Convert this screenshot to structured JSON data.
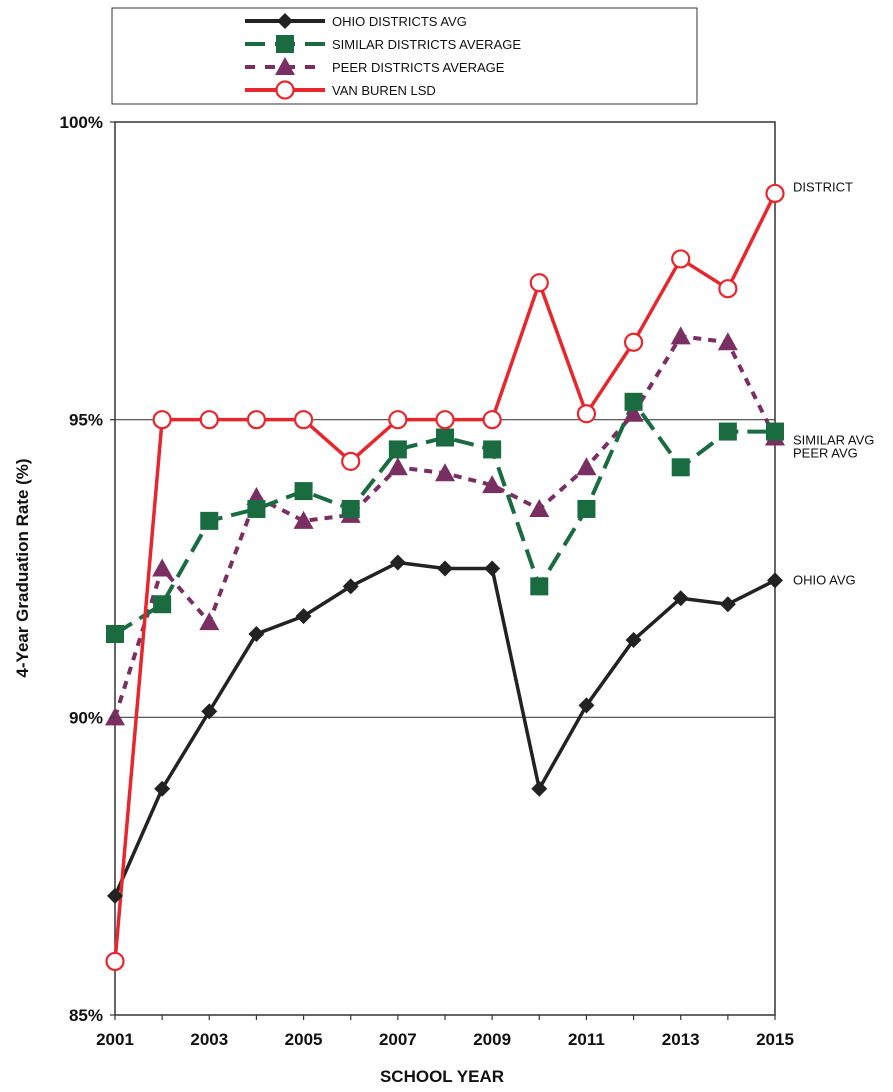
{
  "chart_data": {
    "type": "line",
    "xlabel": "SCHOOL YEAR",
    "ylabel": "4-Year Graduation Rate (%)",
    "x": [
      2001,
      2002,
      2003,
      2004,
      2005,
      2006,
      2007,
      2008,
      2009,
      2010,
      2011,
      2012,
      2013,
      2014,
      2015
    ],
    "xticks": [
      "2001",
      "2003",
      "2005",
      "2007",
      "2009",
      "2011",
      "2013",
      "2015"
    ],
    "ylim": [
      85,
      100
    ],
    "yticks": [
      "85%",
      "90%",
      "95%",
      "100%"
    ],
    "gridlines_y": [
      90,
      95
    ],
    "legend_position": "top",
    "series": [
      {
        "name": "OHIO DISTRICTS AVG",
        "end_label": "OHIO AVG",
        "color": "#222222",
        "marker": "diamond",
        "dashed": false,
        "values": [
          87.0,
          88.8,
          90.1,
          91.4,
          91.7,
          92.2,
          92.6,
          92.5,
          92.5,
          88.8,
          90.2,
          91.3,
          92.0,
          91.9,
          92.3
        ]
      },
      {
        "name": "SIMILAR DISTRICTS AVERAGE",
        "end_label": "SIMILAR AVG",
        "color": "#1a6b40",
        "marker": "square",
        "dashed": true,
        "values": [
          91.4,
          91.9,
          93.3,
          93.5,
          93.8,
          93.5,
          94.5,
          94.7,
          94.5,
          92.2,
          93.5,
          95.3,
          94.2,
          94.8,
          94.8
        ]
      },
      {
        "name": "PEER DISTRICTS AVERAGE",
        "end_label": "PEER AVG",
        "color": "#7a2f63",
        "marker": "triangle",
        "dashed": true,
        "values": [
          90.0,
          92.5,
          91.6,
          93.7,
          93.3,
          93.4,
          94.2,
          94.1,
          93.9,
          93.5,
          94.2,
          95.1,
          96.4,
          96.3,
          94.7
        ]
      },
      {
        "name": "VAN BUREN LSD",
        "end_label": "DISTRICT",
        "color": "#e8262d",
        "marker": "circle",
        "dashed": false,
        "values": [
          85.9,
          95.0,
          95.0,
          95.0,
          95.0,
          94.3,
          95.0,
          95.0,
          95.0,
          97.3,
          95.1,
          96.3,
          97.7,
          97.2,
          98.8
        ]
      }
    ]
  }
}
